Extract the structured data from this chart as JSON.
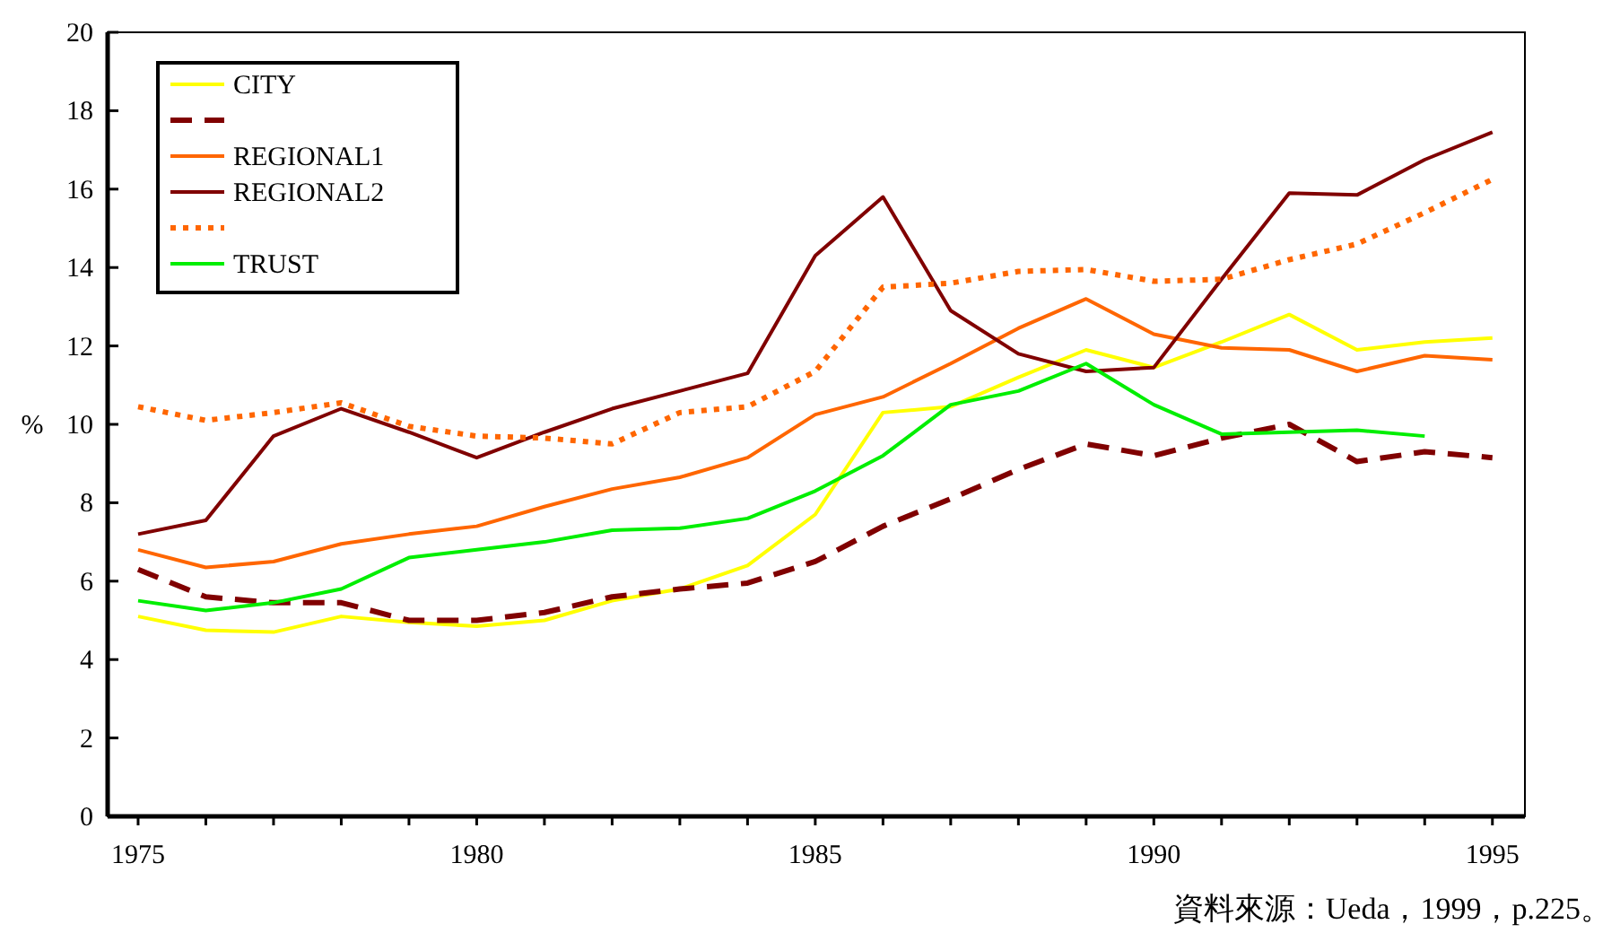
{
  "chart_data": {
    "type": "line",
    "ylabel": "%",
    "x": [
      1975,
      1976,
      1977,
      1978,
      1979,
      1980,
      1981,
      1982,
      1983,
      1984,
      1985,
      1986,
      1987,
      1988,
      1989,
      1990,
      1991,
      1992,
      1993,
      1994,
      1995
    ],
    "xlim": [
      1974.55,
      1995.48
    ],
    "ylim": [
      0,
      20
    ],
    "xticks": [
      1975,
      {
        "value": 1976,
        "label": null
      },
      {
        "value": 1977,
        "label": null
      },
      {
        "value": 1978,
        "label": null
      },
      {
        "value": 1979,
        "label": null
      },
      1980,
      {
        "value": 1981,
        "label": null
      },
      {
        "value": 1982,
        "label": null
      },
      {
        "value": 1983,
        "label": null
      },
      {
        "value": 1984,
        "label": null
      },
      1985,
      {
        "value": 1986,
        "label": null
      },
      {
        "value": 1987,
        "label": null
      },
      {
        "value": 1988,
        "label": null
      },
      {
        "value": 1989,
        "label": null
      },
      1990,
      {
        "value": 1991,
        "label": null
      },
      {
        "value": 1992,
        "label": null
      },
      {
        "value": 1993,
        "label": null
      },
      {
        "value": 1994,
        "label": null
      },
      1995
    ],
    "yticks": [
      0,
      2,
      4,
      6,
      8,
      10,
      12,
      14,
      16,
      18,
      20
    ],
    "grid": false,
    "legend": "top left",
    "marker": "none",
    "series": [
      {
        "name": "CITY",
        "color": "#ffff00",
        "line_style": "solid",
        "values": [
          5.1,
          4.75,
          4.7,
          5.1,
          4.95,
          4.85,
          5.0,
          5.5,
          5.8,
          6.4,
          7.7,
          10.3,
          10.45,
          11.2,
          11.9,
          11.45,
          12.1,
          12.8,
          11.9,
          12.1,
          12.2
        ]
      },
      {
        "color": "#800000",
        "line_style": "dashed",
        "values": [
          6.3,
          5.6,
          5.45,
          5.45,
          5.0,
          5.0,
          5.2,
          5.6,
          5.8,
          5.95,
          6.5,
          7.4,
          8.1,
          8.85,
          9.5,
          9.2,
          9.65,
          10.0,
          9.05,
          9.3,
          9.15
        ]
      },
      {
        "name": "REGIONAL1",
        "color": "#ff6600",
        "line_style": "solid",
        "values": [
          6.8,
          6.35,
          6.5,
          6.95,
          7.2,
          7.4,
          7.9,
          8.35,
          8.65,
          9.15,
          10.25,
          10.7,
          11.55,
          12.45,
          13.2,
          12.3,
          11.95,
          11.9,
          11.35,
          11.75,
          11.65
        ]
      },
      {
        "name": "REGIONAL2",
        "color": "#800000",
        "line_style": "solid",
        "values": [
          7.2,
          7.55,
          9.7,
          10.4,
          9.8,
          9.15,
          9.8,
          10.4,
          10.85,
          11.3,
          14.3,
          15.8,
          12.9,
          11.8,
          11.35,
          11.45,
          13.7,
          15.9,
          15.85,
          16.75,
          17.45
        ]
      },
      {
        "color": "#ff6600",
        "line_style": "dotted",
        "values": [
          10.45,
          10.1,
          10.3,
          10.55,
          9.95,
          9.7,
          9.65,
          9.5,
          10.3,
          10.45,
          11.35,
          13.5,
          13.6,
          13.9,
          13.95,
          13.65,
          13.7,
          14.2,
          14.6,
          15.4,
          16.25
        ]
      },
      {
        "name": "TRUST",
        "color": "#00ee00",
        "line_style": "solid",
        "values": [
          5.5,
          5.25,
          5.45,
          5.8,
          6.6,
          6.8,
          7.0,
          7.3,
          7.35,
          7.6,
          8.3,
          9.2,
          10.5,
          10.85,
          11.55,
          10.5,
          9.75,
          9.8,
          9.85,
          9.7,
          null
        ]
      }
    ],
    "annotations": [
      "資料來源：Ueda，1999，p.225。"
    ]
  }
}
